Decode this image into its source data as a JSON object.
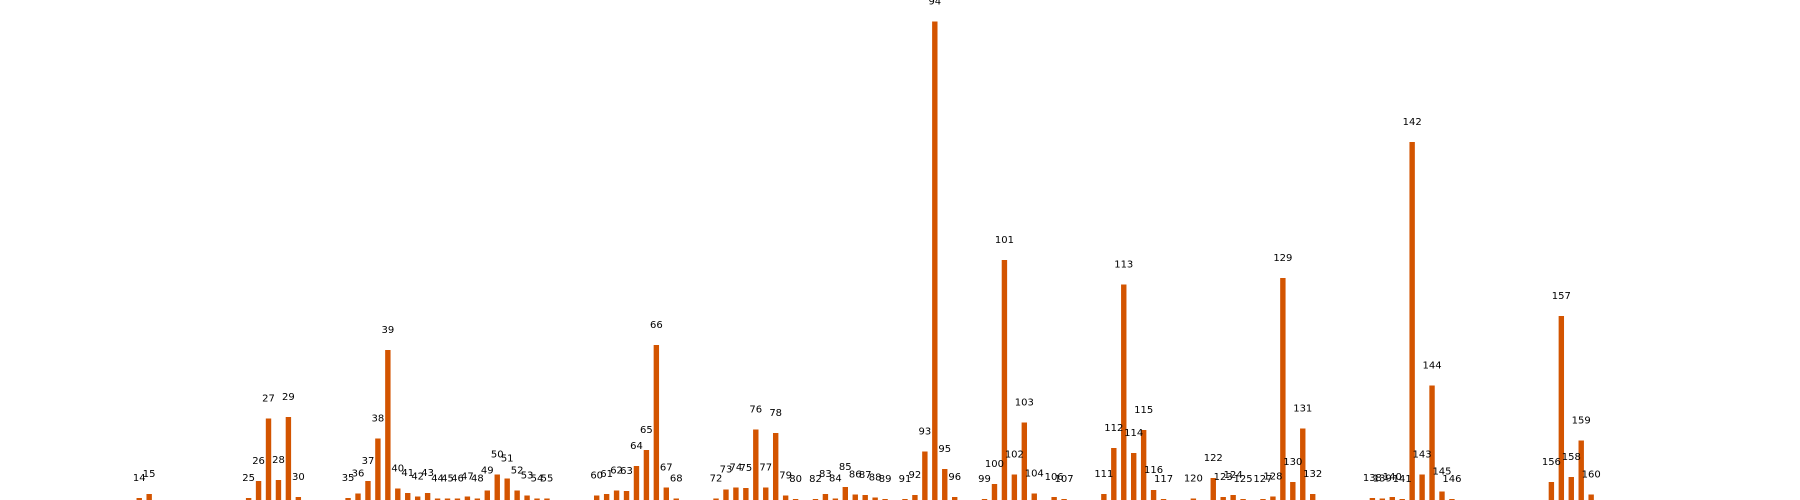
{
  "chart_data": {
    "type": "bar",
    "title": "",
    "xlabel": "",
    "ylabel": "",
    "grid": false,
    "bar_color": "#d35400",
    "ylim": [
      0,
      96
    ],
    "xlim": [
      0,
      181
    ],
    "bars": [
      {
        "x": 14,
        "label": "14",
        "value": 0.4
      },
      {
        "x": 15,
        "label": "15",
        "value": 1.2
      },
      {
        "x": 25,
        "label": "25",
        "value": 0.4
      },
      {
        "x": 26,
        "label": "26",
        "value": 3.8
      },
      {
        "x": 27,
        "label": "27",
        "value": 16.3
      },
      {
        "x": 28,
        "label": "28",
        "value": 4.0
      },
      {
        "x": 29,
        "label": "29",
        "value": 16.6
      },
      {
        "x": 30,
        "label": "30",
        "value": 0.6
      },
      {
        "x": 35,
        "label": "35",
        "value": 0.4
      },
      {
        "x": 36,
        "label": "36",
        "value": 1.3
      },
      {
        "x": 37,
        "label": "37",
        "value": 3.8
      },
      {
        "x": 38,
        "label": "38",
        "value": 12.3
      },
      {
        "x": 39,
        "label": "39",
        "value": 30.0
      },
      {
        "x": 40,
        "label": "40",
        "value": 2.3
      },
      {
        "x": 41,
        "label": "41",
        "value": 1.4
      },
      {
        "x": 42,
        "label": "42",
        "value": 0.7
      },
      {
        "x": 43,
        "label": "43",
        "value": 1.4
      },
      {
        "x": 44,
        "label": "44",
        "value": 0.3
      },
      {
        "x": 45,
        "label": "45",
        "value": 0.3
      },
      {
        "x": 46,
        "label": "46",
        "value": 0.3
      },
      {
        "x": 47,
        "label": "47",
        "value": 0.7
      },
      {
        "x": 48,
        "label": "48",
        "value": 0.3
      },
      {
        "x": 49,
        "label": "49",
        "value": 1.9
      },
      {
        "x": 50,
        "label": "50",
        "value": 5.1
      },
      {
        "x": 51,
        "label": "51",
        "value": 4.3
      },
      {
        "x": 52,
        "label": "52",
        "value": 1.9
      },
      {
        "x": 53,
        "label": "53",
        "value": 0.9
      },
      {
        "x": 54,
        "label": "54",
        "value": 0.3
      },
      {
        "x": 55,
        "label": "55",
        "value": 0.3
      },
      {
        "x": 60,
        "label": "60",
        "value": 0.9
      },
      {
        "x": 61,
        "label": "61",
        "value": 1.2
      },
      {
        "x": 62,
        "label": "62",
        "value": 1.9
      },
      {
        "x": 63,
        "label": "63",
        "value": 1.8
      },
      {
        "x": 64,
        "label": "64",
        "value": 6.8
      },
      {
        "x": 65,
        "label": "65",
        "value": 10.0
      },
      {
        "x": 66,
        "label": "66",
        "value": 31.0
      },
      {
        "x": 67,
        "label": "67",
        "value": 2.5
      },
      {
        "x": 68,
        "label": "68",
        "value": 0.3
      },
      {
        "x": 72,
        "label": "72",
        "value": 0.3
      },
      {
        "x": 73,
        "label": "73",
        "value": 2.1
      },
      {
        "x": 74,
        "label": "74",
        "value": 2.5
      },
      {
        "x": 75,
        "label": "75",
        "value": 2.4
      },
      {
        "x": 76,
        "label": "76",
        "value": 14.1
      },
      {
        "x": 77,
        "label": "77",
        "value": 2.5
      },
      {
        "x": 78,
        "label": "78",
        "value": 13.4
      },
      {
        "x": 79,
        "label": "79",
        "value": 0.9
      },
      {
        "x": 80,
        "label": "80",
        "value": 0.2
      },
      {
        "x": 82,
        "label": "82",
        "value": 0.2
      },
      {
        "x": 83,
        "label": "83",
        "value": 1.2
      },
      {
        "x": 84,
        "label": "84",
        "value": 0.3
      },
      {
        "x": 85,
        "label": "85",
        "value": 2.6
      },
      {
        "x": 86,
        "label": "86",
        "value": 1.1
      },
      {
        "x": 87,
        "label": "87",
        "value": 1.0
      },
      {
        "x": 88,
        "label": "88",
        "value": 0.5
      },
      {
        "x": 89,
        "label": "89",
        "value": 0.2
      },
      {
        "x": 91,
        "label": "91",
        "value": 0.2
      },
      {
        "x": 92,
        "label": "92",
        "value": 1.0
      },
      {
        "x": 93,
        "label": "93",
        "value": 9.7
      },
      {
        "x": 94,
        "label": "94",
        "value": 95.7
      },
      {
        "x": 95,
        "label": "95",
        "value": 6.2
      },
      {
        "x": 96,
        "label": "96",
        "value": 0.6
      },
      {
        "x": 99,
        "label": "99",
        "value": 0.2
      },
      {
        "x": 100,
        "label": "100",
        "value": 3.2
      },
      {
        "x": 101,
        "label": "101",
        "value": 48.0
      },
      {
        "x": 102,
        "label": "102",
        "value": 5.1
      },
      {
        "x": 103,
        "label": "103",
        "value": 15.5
      },
      {
        "x": 104,
        "label": "104",
        "value": 1.3
      },
      {
        "x": 106,
        "label": "106",
        "value": 0.6
      },
      {
        "x": 107,
        "label": "107",
        "value": 0.2
      },
      {
        "x": 111,
        "label": "111",
        "value": 1.2
      },
      {
        "x": 112,
        "label": "112",
        "value": 10.4
      },
      {
        "x": 113,
        "label": "113",
        "value": 43.1
      },
      {
        "x": 114,
        "label": "114",
        "value": 9.4
      },
      {
        "x": 115,
        "label": "115",
        "value": 14.0
      },
      {
        "x": 116,
        "label": "116",
        "value": 2.0
      },
      {
        "x": 117,
        "label": "117",
        "value": 0.2
      },
      {
        "x": 120,
        "label": "120",
        "value": 0.3
      },
      {
        "x": 122,
        "label": "122",
        "value": 4.4
      },
      {
        "x": 123,
        "label": "123",
        "value": 0.6
      },
      {
        "x": 124,
        "label": "124",
        "value": 1.0
      },
      {
        "x": 125,
        "label": "125",
        "value": 0.2
      },
      {
        "x": 127,
        "label": "127",
        "value": 0.2
      },
      {
        "x": 128,
        "label": "128",
        "value": 0.7
      },
      {
        "x": 129,
        "label": "129",
        "value": 44.4
      },
      {
        "x": 130,
        "label": "130",
        "value": 3.6
      },
      {
        "x": 131,
        "label": "131",
        "value": 14.3
      },
      {
        "x": 132,
        "label": "132",
        "value": 1.2
      },
      {
        "x": 138,
        "label": "138",
        "value": 0.4
      },
      {
        "x": 139,
        "label": "139",
        "value": 0.3
      },
      {
        "x": 140,
        "label": "140",
        "value": 0.6
      },
      {
        "x": 141,
        "label": "141",
        "value": 0.2
      },
      {
        "x": 142,
        "label": "142",
        "value": 71.6
      },
      {
        "x": 143,
        "label": "143",
        "value": 5.1
      },
      {
        "x": 144,
        "label": "144",
        "value": 22.9
      },
      {
        "x": 145,
        "label": "145",
        "value": 1.7
      },
      {
        "x": 146,
        "label": "146",
        "value": 0.2
      },
      {
        "x": 156,
        "label": "156",
        "value": 3.6
      },
      {
        "x": 157,
        "label": "157",
        "value": 36.8
      },
      {
        "x": 158,
        "label": "158",
        "value": 4.6
      },
      {
        "x": 159,
        "label": "159",
        "value": 11.9
      },
      {
        "x": 160,
        "label": "160",
        "value": 1.1
      }
    ]
  }
}
